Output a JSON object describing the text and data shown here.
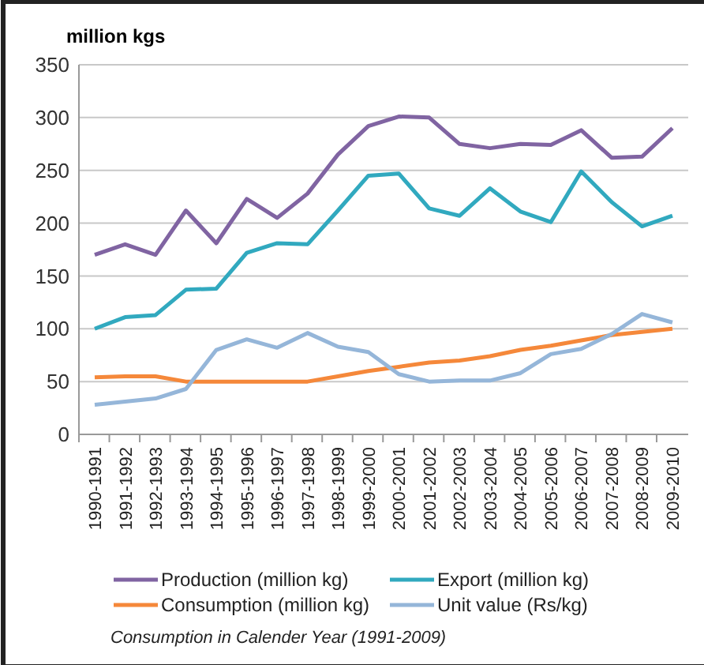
{
  "chart_data": {
    "type": "line",
    "ylabel": "million kgs",
    "categories": [
      "1990-1991",
      "1991-1992",
      "1992-1993",
      "1993-1994",
      "1994-1995",
      "1995-1996",
      "1996-1997",
      "1997-1998",
      "1998-1999",
      "1999-2000",
      "2000-2001",
      "2001-2002",
      "2002-2003",
      "2003-2004",
      "2004-2005",
      "2005-2006",
      "2006-2007",
      "2007-2008",
      "2008-2009",
      "2009-2010"
    ],
    "series": [
      {
        "name": "Production (million kg)",
        "color": "#8064a2",
        "values": [
          170,
          180,
          170,
          212,
          181,
          223,
          205,
          228,
          265,
          292,
          301,
          300,
          275,
          271,
          275,
          274,
          288,
          262,
          263,
          290
        ]
      },
      {
        "name": "Export (million kg)",
        "color": "#31a9bf",
        "values": [
          100,
          111,
          113,
          137,
          138,
          172,
          181,
          180,
          212,
          245,
          247,
          214,
          207,
          233,
          211,
          201,
          249,
          220,
          197,
          207
        ]
      },
      {
        "name": "Consumption (million kg)",
        "color": "#f5883a",
        "values": [
          54,
          55,
          55,
          50,
          50,
          50,
          50,
          50,
          55,
          60,
          64,
          68,
          70,
          74,
          80,
          84,
          89,
          94,
          97,
          100
        ]
      },
      {
        "name": "Unit value (Rs/kg)",
        "color": "#95b6d9",
        "values": [
          28,
          31,
          34,
          43,
          80,
          90,
          82,
          96,
          83,
          78,
          57,
          50,
          51,
          51,
          58,
          76,
          81,
          95,
          114,
          106
        ]
      }
    ],
    "ylim": [
      0,
      350
    ],
    "yticks": [
      0,
      50,
      100,
      150,
      200,
      250,
      300,
      350
    ],
    "grid": "y",
    "legend": "bottom",
    "line_style": "solid",
    "marker": "none",
    "annotations": [
      "Consumption in Calender Year (1991-2009)"
    ]
  }
}
